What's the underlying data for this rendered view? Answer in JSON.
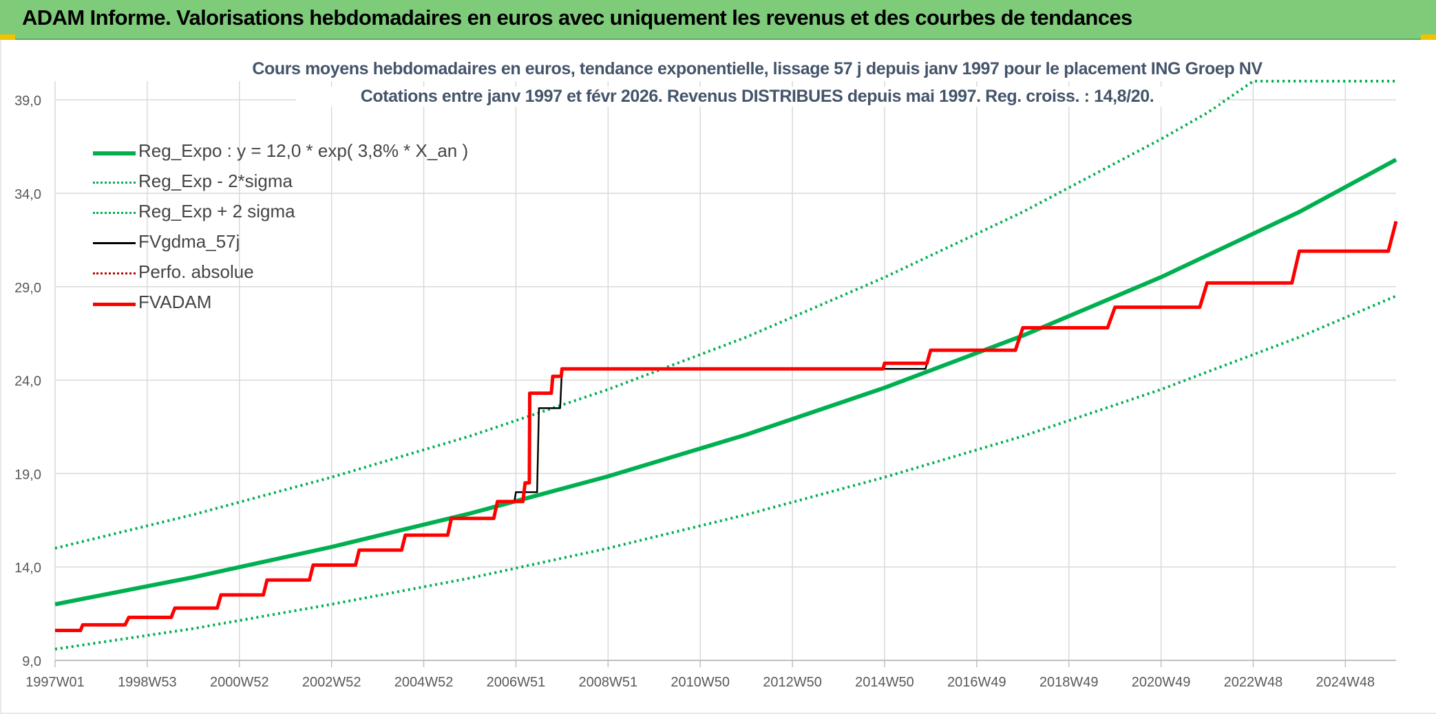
{
  "header": {
    "title": "ADAM Informe. Valorisations hebdomadaires en euros avec uniquement les revenus et des courbes de tendances"
  },
  "chart_data": {
    "type": "line",
    "title": "Cours moyens hebdomadaires en euros, tendance exponentielle, lissage 57 j depuis janv 1997 pour le placement ING Groep NV",
    "subtitle": "Cotations entre janv 1997 et févr 2026. Revenus DISTRIBUES depuis mai 1997. Reg. croiss. : 14,8/20.",
    "xlabel": "",
    "ylabel": "",
    "ylim": [
      9,
      40
    ],
    "xlim": [
      1997.0,
      2026.1
    ],
    "yticks": [
      "9,0",
      "14,0",
      "19,0",
      "24,0",
      "29,0",
      "34,0",
      "39,0"
    ],
    "ytick_values": [
      9,
      14,
      19,
      24,
      29,
      34,
      39
    ],
    "xticks": [
      "1997W01",
      "1998W53",
      "2000W52",
      "2002W52",
      "2004W52",
      "2006W51",
      "2008W51",
      "2010W50",
      "2012W50",
      "2014W50",
      "2016W49",
      "2018W49",
      "2020W49",
      "2022W48",
      "2024W48"
    ],
    "xtick_values": [
      1997.0,
      1999.0,
      2001.0,
      2003.0,
      2005.0,
      2007.0,
      2009.0,
      2011.0,
      2013.0,
      2015.0,
      2017.0,
      2019.0,
      2021.0,
      2023.0,
      2025.0
    ],
    "grid": true,
    "legend_position": "top-left",
    "series": [
      {
        "name": "Reg_Expo : y = 12,0 * exp( 3,8% *  X_an )",
        "color": "#00b050",
        "style": "solid",
        "x": [
          1997,
          2000,
          2003,
          2006,
          2009,
          2012,
          2015,
          2018,
          2021,
          2024,
          2026.1
        ],
        "y": [
          12.0,
          13.45,
          15.07,
          16.86,
          18.85,
          21.08,
          23.59,
          26.38,
          29.51,
          33.0,
          35.8
        ]
      },
      {
        "name": "Reg_Exp - 2*sigma",
        "color": "#00b050",
        "style": "dotted",
        "x": [
          1997,
          2000,
          2003,
          2006,
          2009,
          2012,
          2015,
          2018,
          2021,
          2024,
          2026.1
        ],
        "y": [
          9.6,
          10.7,
          12.0,
          13.4,
          15.0,
          16.8,
          18.8,
          21.0,
          23.5,
          26.3,
          28.5
        ]
      },
      {
        "name": "Reg_Exp + 2 sigma",
        "color": "#00b050",
        "style": "dotted",
        "x": [
          1997,
          2000,
          2003,
          2006,
          2009,
          2012,
          2015,
          2018,
          2021,
          2022,
          2023.0,
          2026.1
        ],
        "y": [
          15.0,
          16.8,
          18.8,
          21.0,
          23.5,
          26.3,
          29.5,
          33.0,
          36.9,
          38.3,
          40,
          40
        ]
      },
      {
        "name": "FVgdma_57j",
        "color": "#000000",
        "style": "solid",
        "x": [
          1997.0,
          1997.6,
          1998.6,
          1999.6,
          2000.6,
          2001.6,
          2002.6,
          2003.6,
          2004.6,
          2005.6,
          2006.6,
          2007.0,
          2007.5,
          2008.0,
          2014.6,
          2016.0,
          2018.0,
          2020.0,
          2022.0,
          2024.0,
          2026.1
        ],
        "y": [
          10.6,
          10.9,
          11.3,
          11.8,
          12.5,
          13.3,
          14.1,
          14.9,
          15.7,
          16.6,
          17.5,
          18.0,
          22.5,
          24.6,
          24.6,
          25.6,
          26.8,
          27.9,
          29.2,
          30.9,
          32.5
        ]
      },
      {
        "name": "Perfo. absolue",
        "color": "#c00000",
        "style": "dotted",
        "x": [],
        "y": []
      },
      {
        "name": "FVADAM",
        "color": "#ff0000",
        "style": "solid",
        "x": [
          1997.0,
          1997.6,
          1998.6,
          1999.6,
          2000.6,
          2001.6,
          2002.6,
          2003.6,
          2004.6,
          2005.6,
          2006.6,
          2007.2,
          2007.3,
          2007.4,
          2007.8,
          2008.0,
          2014.6,
          2015.0,
          2016.0,
          2018.0,
          2020.0,
          2022.0,
          2024.0,
          2026.1
        ],
        "y": [
          10.6,
          10.9,
          11.3,
          11.8,
          12.5,
          13.3,
          14.1,
          14.9,
          15.7,
          16.6,
          17.5,
          18.5,
          23.3,
          23.3,
          24.2,
          24.6,
          24.6,
          24.9,
          25.6,
          26.8,
          27.9,
          29.2,
          30.9,
          32.5
        ]
      }
    ]
  }
}
